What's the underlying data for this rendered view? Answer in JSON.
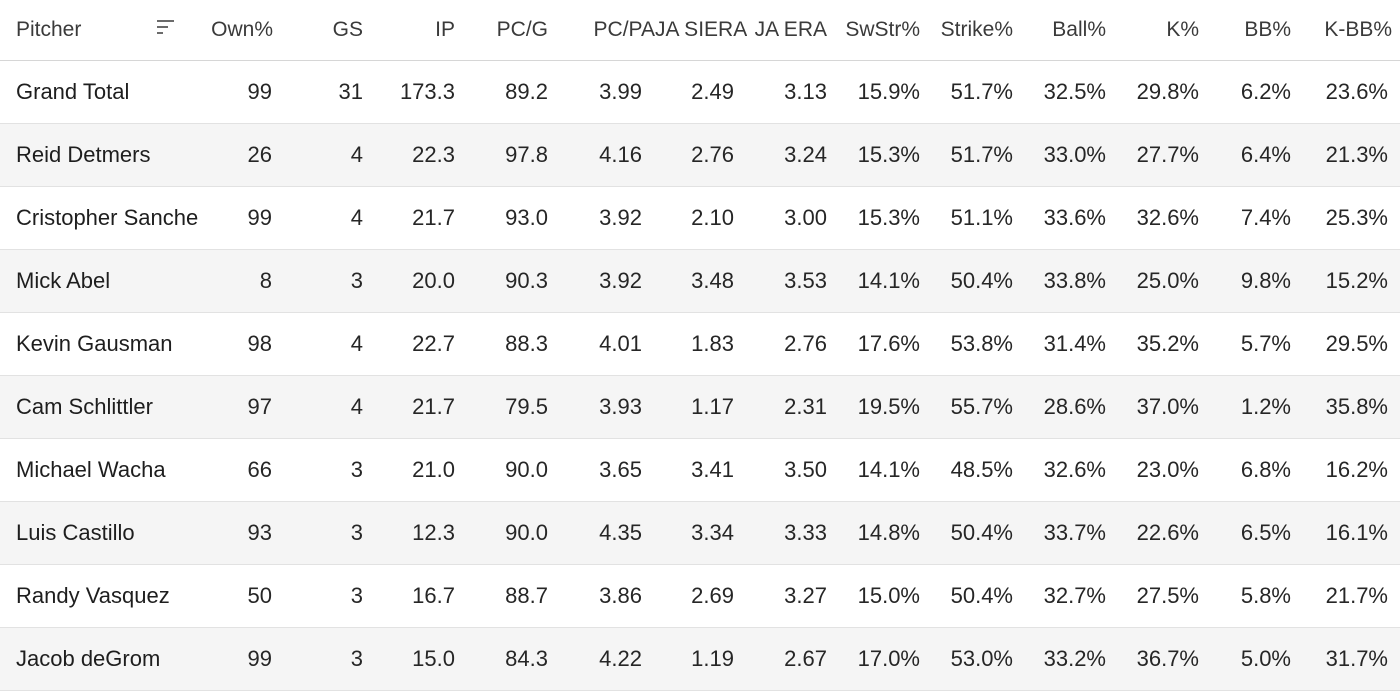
{
  "table": {
    "pitcher_header": "Pitcher",
    "sort_icon": "sort-descending-icon",
    "columns": [
      "Own%",
      "GS",
      "IP",
      "PC/G",
      "PC/PA",
      "JA SIERA",
      "JA ERA",
      "SwStr%",
      "Strike%",
      "Ball%",
      "K%",
      "BB%",
      "K-BB%"
    ],
    "rows": [
      {
        "name": "Grand Total",
        "values": [
          "99",
          "31",
          "173.3",
          "89.2",
          "3.99",
          "2.49",
          "3.13",
          "15.9%",
          "51.7%",
          "32.5%",
          "29.8%",
          "6.2%",
          "23.6%"
        ]
      },
      {
        "name": "Reid Detmers",
        "values": [
          "26",
          "4",
          "22.3",
          "97.8",
          "4.16",
          "2.76",
          "3.24",
          "15.3%",
          "51.7%",
          "33.0%",
          "27.7%",
          "6.4%",
          "21.3%"
        ]
      },
      {
        "name": "Cristopher Sanchez",
        "values": [
          "99",
          "4",
          "21.7",
          "93.0",
          "3.92",
          "2.10",
          "3.00",
          "15.3%",
          "51.1%",
          "33.6%",
          "32.6%",
          "7.4%",
          "25.3%"
        ]
      },
      {
        "name": "Mick Abel",
        "values": [
          "8",
          "3",
          "20.0",
          "90.3",
          "3.92",
          "3.48",
          "3.53",
          "14.1%",
          "50.4%",
          "33.8%",
          "25.0%",
          "9.8%",
          "15.2%"
        ]
      },
      {
        "name": "Kevin Gausman",
        "values": [
          "98",
          "4",
          "22.7",
          "88.3",
          "4.01",
          "1.83",
          "2.76",
          "17.6%",
          "53.8%",
          "31.4%",
          "35.2%",
          "5.7%",
          "29.5%"
        ]
      },
      {
        "name": "Cam Schlittler",
        "values": [
          "97",
          "4",
          "21.7",
          "79.5",
          "3.93",
          "1.17",
          "2.31",
          "19.5%",
          "55.7%",
          "28.6%",
          "37.0%",
          "1.2%",
          "35.8%"
        ]
      },
      {
        "name": "Michael Wacha",
        "values": [
          "66",
          "3",
          "21.0",
          "90.0",
          "3.65",
          "3.41",
          "3.50",
          "14.1%",
          "48.5%",
          "32.6%",
          "23.0%",
          "6.8%",
          "16.2%"
        ]
      },
      {
        "name": "Luis Castillo",
        "values": [
          "93",
          "3",
          "12.3",
          "90.0",
          "4.35",
          "3.34",
          "3.33",
          "14.8%",
          "50.4%",
          "33.7%",
          "22.6%",
          "6.5%",
          "16.1%"
        ]
      },
      {
        "name": "Randy Vasquez",
        "values": [
          "50",
          "3",
          "16.7",
          "88.7",
          "3.86",
          "2.69",
          "3.27",
          "15.0%",
          "50.4%",
          "32.7%",
          "27.5%",
          "5.8%",
          "21.7%"
        ]
      },
      {
        "name": "Jacob deGrom",
        "values": [
          "99",
          "3",
          "15.0",
          "84.3",
          "4.22",
          "1.19",
          "2.67",
          "17.0%",
          "53.0%",
          "33.2%",
          "36.7%",
          "5.0%",
          "31.7%"
        ]
      }
    ]
  }
}
